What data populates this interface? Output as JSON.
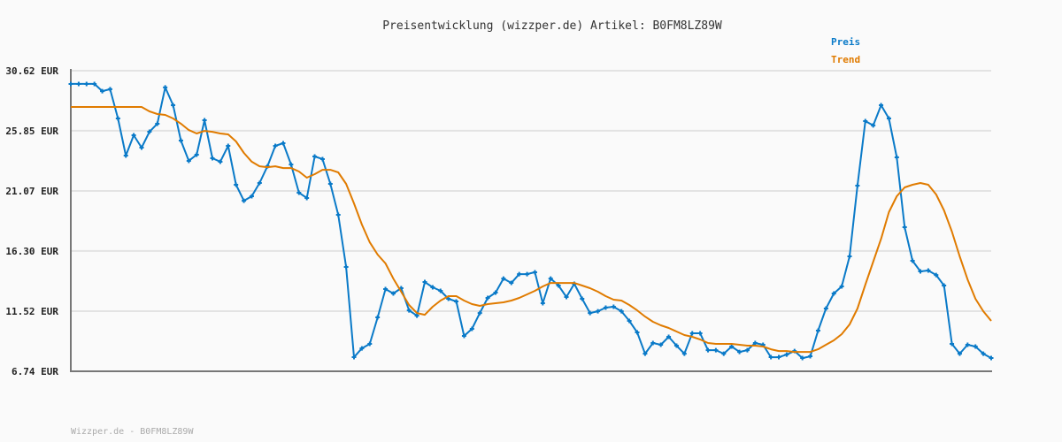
{
  "chart_data": {
    "type": "line",
    "title": "Preisentwicklung (wizzper.de) Artikel: B0FM8LZ89W",
    "xlabel": "",
    "ylabel": "",
    "ylim": [
      6.74,
      30.62
    ],
    "yticks": [
      "30.62 EUR",
      "25.85 EUR",
      "21.07 EUR",
      "16.30 EUR",
      "11.52 EUR",
      "6.74 EUR"
    ],
    "ytick_values": [
      30.62,
      25.85,
      21.07,
      16.3,
      11.52,
      6.74
    ],
    "grid": true,
    "legend_placement": "top-right",
    "series": [
      {
        "name": "Preis",
        "color": "#0a7ac8",
        "markers": true,
        "values": [
          29.57,
          29.57,
          29.57,
          29.57,
          29.0,
          29.15,
          26.83,
          23.88,
          25.49,
          24.51,
          25.77,
          26.41,
          29.29,
          27.88,
          25.07,
          23.46,
          23.95,
          26.69,
          23.67,
          23.39,
          24.65,
          21.56,
          20.29,
          20.65,
          21.7,
          23.03,
          24.65,
          24.86,
          23.17,
          20.93,
          20.51,
          23.81,
          23.6,
          21.63,
          19.17,
          15.03,
          7.86,
          8.56,
          8.92,
          11.02,
          13.27,
          12.92,
          13.34,
          11.58,
          11.16,
          13.83,
          13.41,
          13.13,
          12.5,
          12.29,
          9.55,
          10.11,
          11.37,
          12.57,
          12.99,
          14.11,
          13.76,
          14.46,
          14.46,
          14.61,
          12.15,
          14.11,
          13.55,
          12.64,
          13.69,
          12.5,
          11.37,
          11.51,
          11.8,
          11.87,
          11.51,
          10.74,
          9.83,
          8.14,
          8.99,
          8.85,
          9.48,
          8.78,
          8.14,
          9.76,
          9.76,
          8.42,
          8.42,
          8.14,
          8.71,
          8.28,
          8.42,
          8.99,
          8.85,
          7.86,
          7.86,
          8.07,
          8.35,
          7.79,
          7.93,
          9.97,
          11.73,
          12.92,
          13.48,
          15.87,
          21.49,
          26.62,
          26.27,
          27.88,
          26.83,
          23.74,
          18.19,
          15.52,
          14.68,
          14.75,
          14.39,
          13.55,
          8.92,
          8.14,
          8.85,
          8.71,
          8.14,
          7.79
        ]
      },
      {
        "name": "Trend",
        "color": "#e07b00",
        "markers": false,
        "values": [
          27.74,
          27.74,
          27.74,
          27.74,
          27.74,
          27.74,
          27.74,
          27.74,
          27.74,
          27.74,
          27.39,
          27.18,
          27.11,
          26.83,
          26.41,
          25.91,
          25.63,
          25.84,
          25.77,
          25.63,
          25.56,
          25.0,
          24.09,
          23.39,
          23.03,
          22.96,
          23.03,
          22.89,
          22.89,
          22.61,
          22.12,
          22.4,
          22.75,
          22.75,
          22.54,
          21.63,
          20.08,
          18.4,
          16.99,
          16.01,
          15.31,
          14.11,
          13.06,
          12.01,
          11.37,
          11.23,
          11.87,
          12.36,
          12.71,
          12.71,
          12.36,
          12.08,
          11.94,
          12.08,
          12.15,
          12.22,
          12.36,
          12.57,
          12.85,
          13.13,
          13.48,
          13.76,
          13.76,
          13.76,
          13.76,
          13.55,
          13.34,
          13.06,
          12.71,
          12.43,
          12.36,
          12.01,
          11.58,
          11.09,
          10.67,
          10.39,
          10.18,
          9.9,
          9.62,
          9.48,
          9.27,
          8.99,
          8.92,
          8.92,
          8.92,
          8.85,
          8.78,
          8.78,
          8.71,
          8.49,
          8.35,
          8.35,
          8.28,
          8.28,
          8.28,
          8.49,
          8.85,
          9.2,
          9.69,
          10.46,
          11.73,
          13.62,
          15.45,
          17.27,
          19.38,
          20.65,
          21.35,
          21.56,
          21.7,
          21.56,
          20.79,
          19.52,
          17.84,
          15.87,
          14.04,
          12.5,
          11.51,
          10.74
        ]
      }
    ]
  },
  "footer": "Wizzper.de - B0FM8LZ89W"
}
